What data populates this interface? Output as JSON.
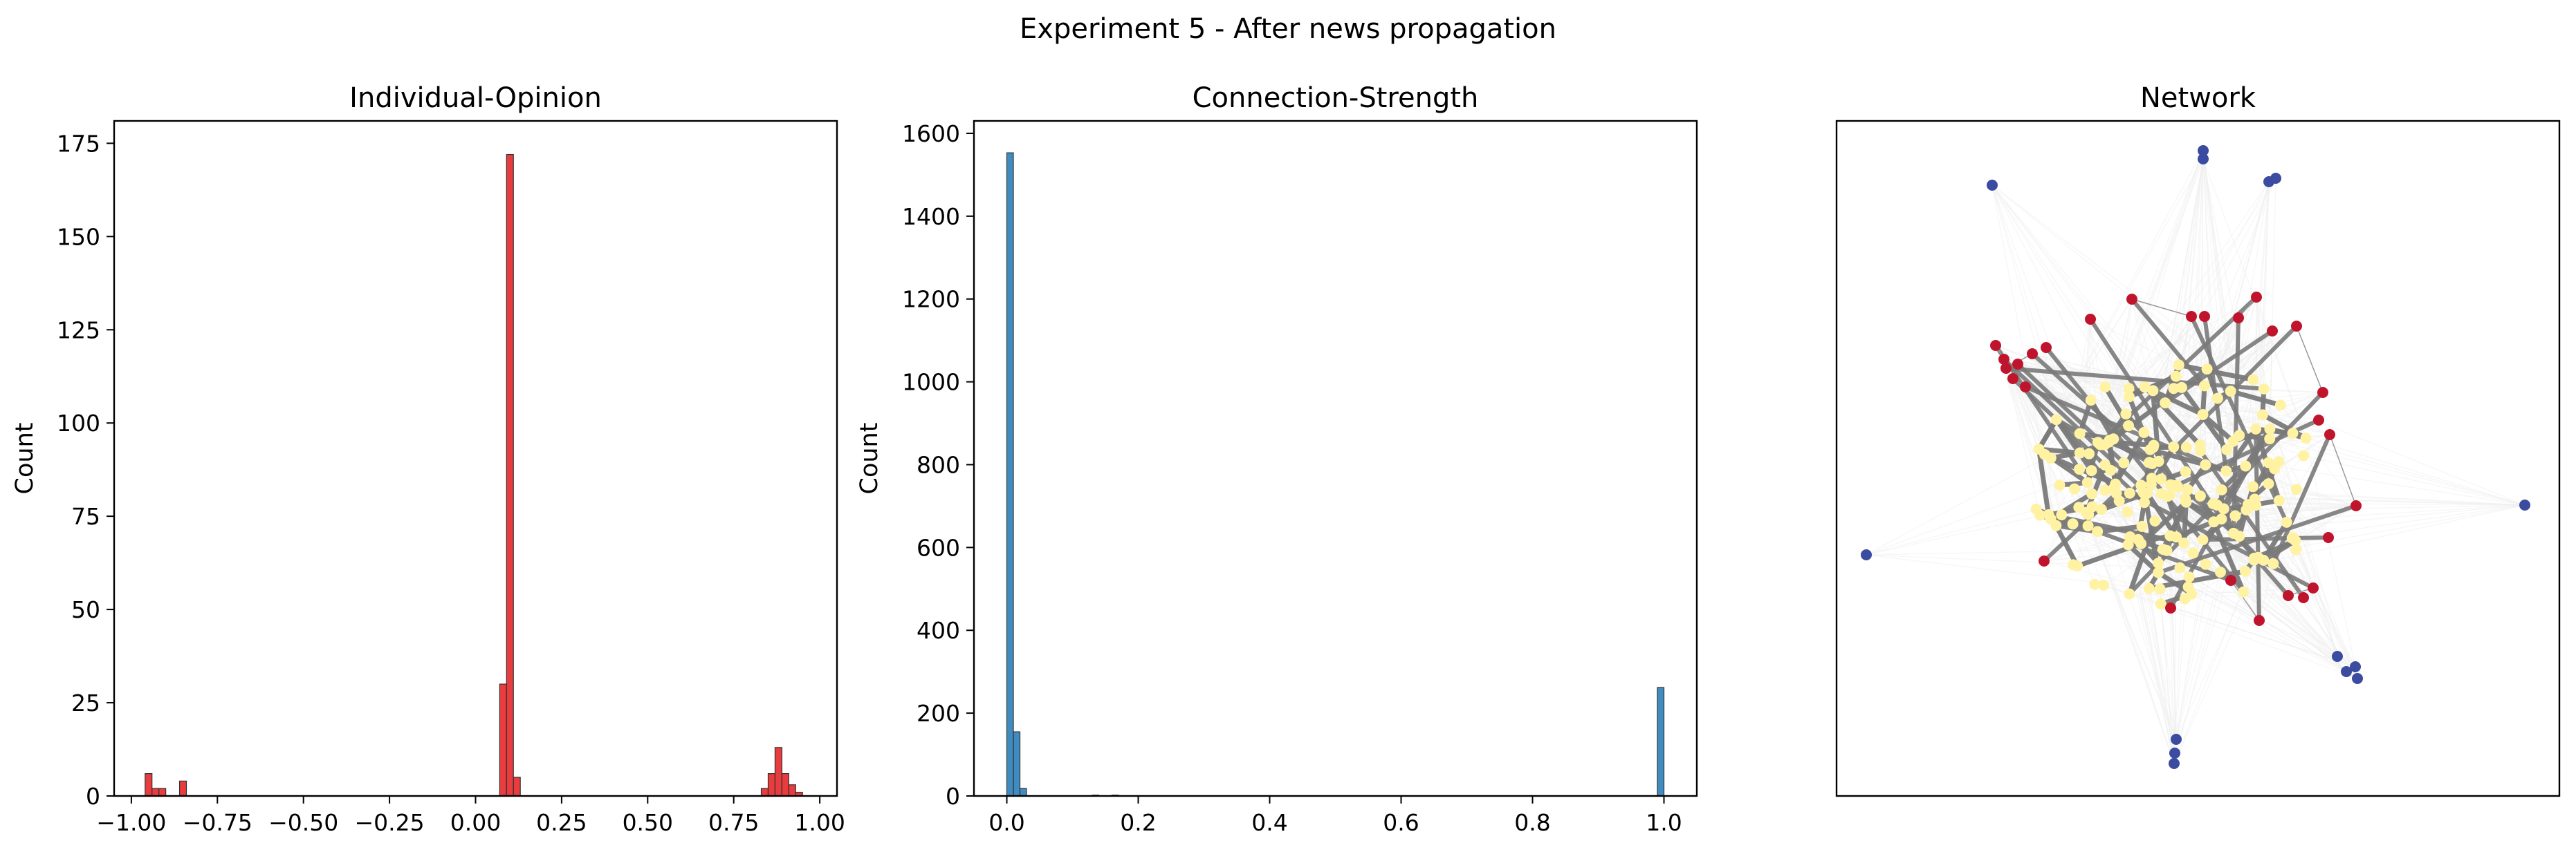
{
  "figure": {
    "suptitle": "Experiment 5 - After news propagation"
  },
  "chart_data": [
    {
      "type": "bar",
      "subtype": "histogram",
      "title": "Individual-Opinion",
      "xlabel": "",
      "ylabel": "Count",
      "xlim": [
        -1.05,
        1.05
      ],
      "ylim": [
        0,
        181
      ],
      "xticks": [
        -1.0,
        -0.75,
        -0.5,
        -0.25,
        0.0,
        0.25,
        0.5,
        0.75,
        1.0
      ],
      "xtick_labels": [
        "−1.00",
        "−0.75",
        "−0.50",
        "−0.25",
        "0.00",
        "0.25",
        "0.50",
        "0.75",
        "1.00"
      ],
      "yticks": [
        0,
        25,
        50,
        75,
        100,
        125,
        150,
        175
      ],
      "ytick_labels": [
        "0",
        "25",
        "50",
        "75",
        "100",
        "125",
        "150",
        "175"
      ],
      "color": "#e41a1c",
      "bins": [
        {
          "x0": -0.96,
          "x1": -0.94,
          "count": 6
        },
        {
          "x0": -0.94,
          "x1": -0.92,
          "count": 2
        },
        {
          "x0": -0.92,
          "x1": -0.9,
          "count": 2
        },
        {
          "x0": -0.88,
          "x1": -0.86,
          "count": 0
        },
        {
          "x0": -0.86,
          "x1": -0.84,
          "count": 4
        },
        {
          "x0": 0.07,
          "x1": 0.09,
          "count": 30
        },
        {
          "x0": 0.09,
          "x1": 0.11,
          "count": 172
        },
        {
          "x0": 0.11,
          "x1": 0.13,
          "count": 5
        },
        {
          "x0": 0.83,
          "x1": 0.85,
          "count": 2
        },
        {
          "x0": 0.85,
          "x1": 0.87,
          "count": 6
        },
        {
          "x0": 0.87,
          "x1": 0.89,
          "count": 13
        },
        {
          "x0": 0.89,
          "x1": 0.91,
          "count": 6
        },
        {
          "x0": 0.91,
          "x1": 0.93,
          "count": 3
        },
        {
          "x0": 0.93,
          "x1": 0.95,
          "count": 1
        }
      ]
    },
    {
      "type": "bar",
      "subtype": "histogram",
      "title": "Connection-Strength",
      "xlabel": "",
      "ylabel": "Count",
      "xlim": [
        -0.05,
        1.05
      ],
      "ylim": [
        0,
        1630
      ],
      "xticks": [
        0.0,
        0.2,
        0.4,
        0.6,
        0.8,
        1.0
      ],
      "xtick_labels": [
        "0.0",
        "0.2",
        "0.4",
        "0.6",
        "0.8",
        "1.0"
      ],
      "yticks": [
        0,
        200,
        400,
        600,
        800,
        1000,
        1200,
        1400,
        1600
      ],
      "ytick_labels": [
        "0",
        "200",
        "400",
        "600",
        "800",
        "1000",
        "1200",
        "1400",
        "1600"
      ],
      "color": "#1f77b4",
      "bins": [
        {
          "x0": 0.0,
          "x1": 0.01,
          "count": 1553
        },
        {
          "x0": 0.01,
          "x1": 0.02,
          "count": 155
        },
        {
          "x0": 0.02,
          "x1": 0.03,
          "count": 18
        },
        {
          "x0": 0.13,
          "x1": 0.14,
          "count": 2
        },
        {
          "x0": 0.16,
          "x1": 0.17,
          "count": 2
        },
        {
          "x0": 0.99,
          "x1": 1.0,
          "count": 262
        }
      ]
    },
    {
      "type": "network",
      "title": "Network",
      "node_colors": {
        "moderate": "#fff3a3",
        "positive": "#c0142c",
        "negative": "#3b4ba0"
      },
      "edge_colors": {
        "strong": "#7a7a7a",
        "weak": "#efefef"
      }
    }
  ]
}
